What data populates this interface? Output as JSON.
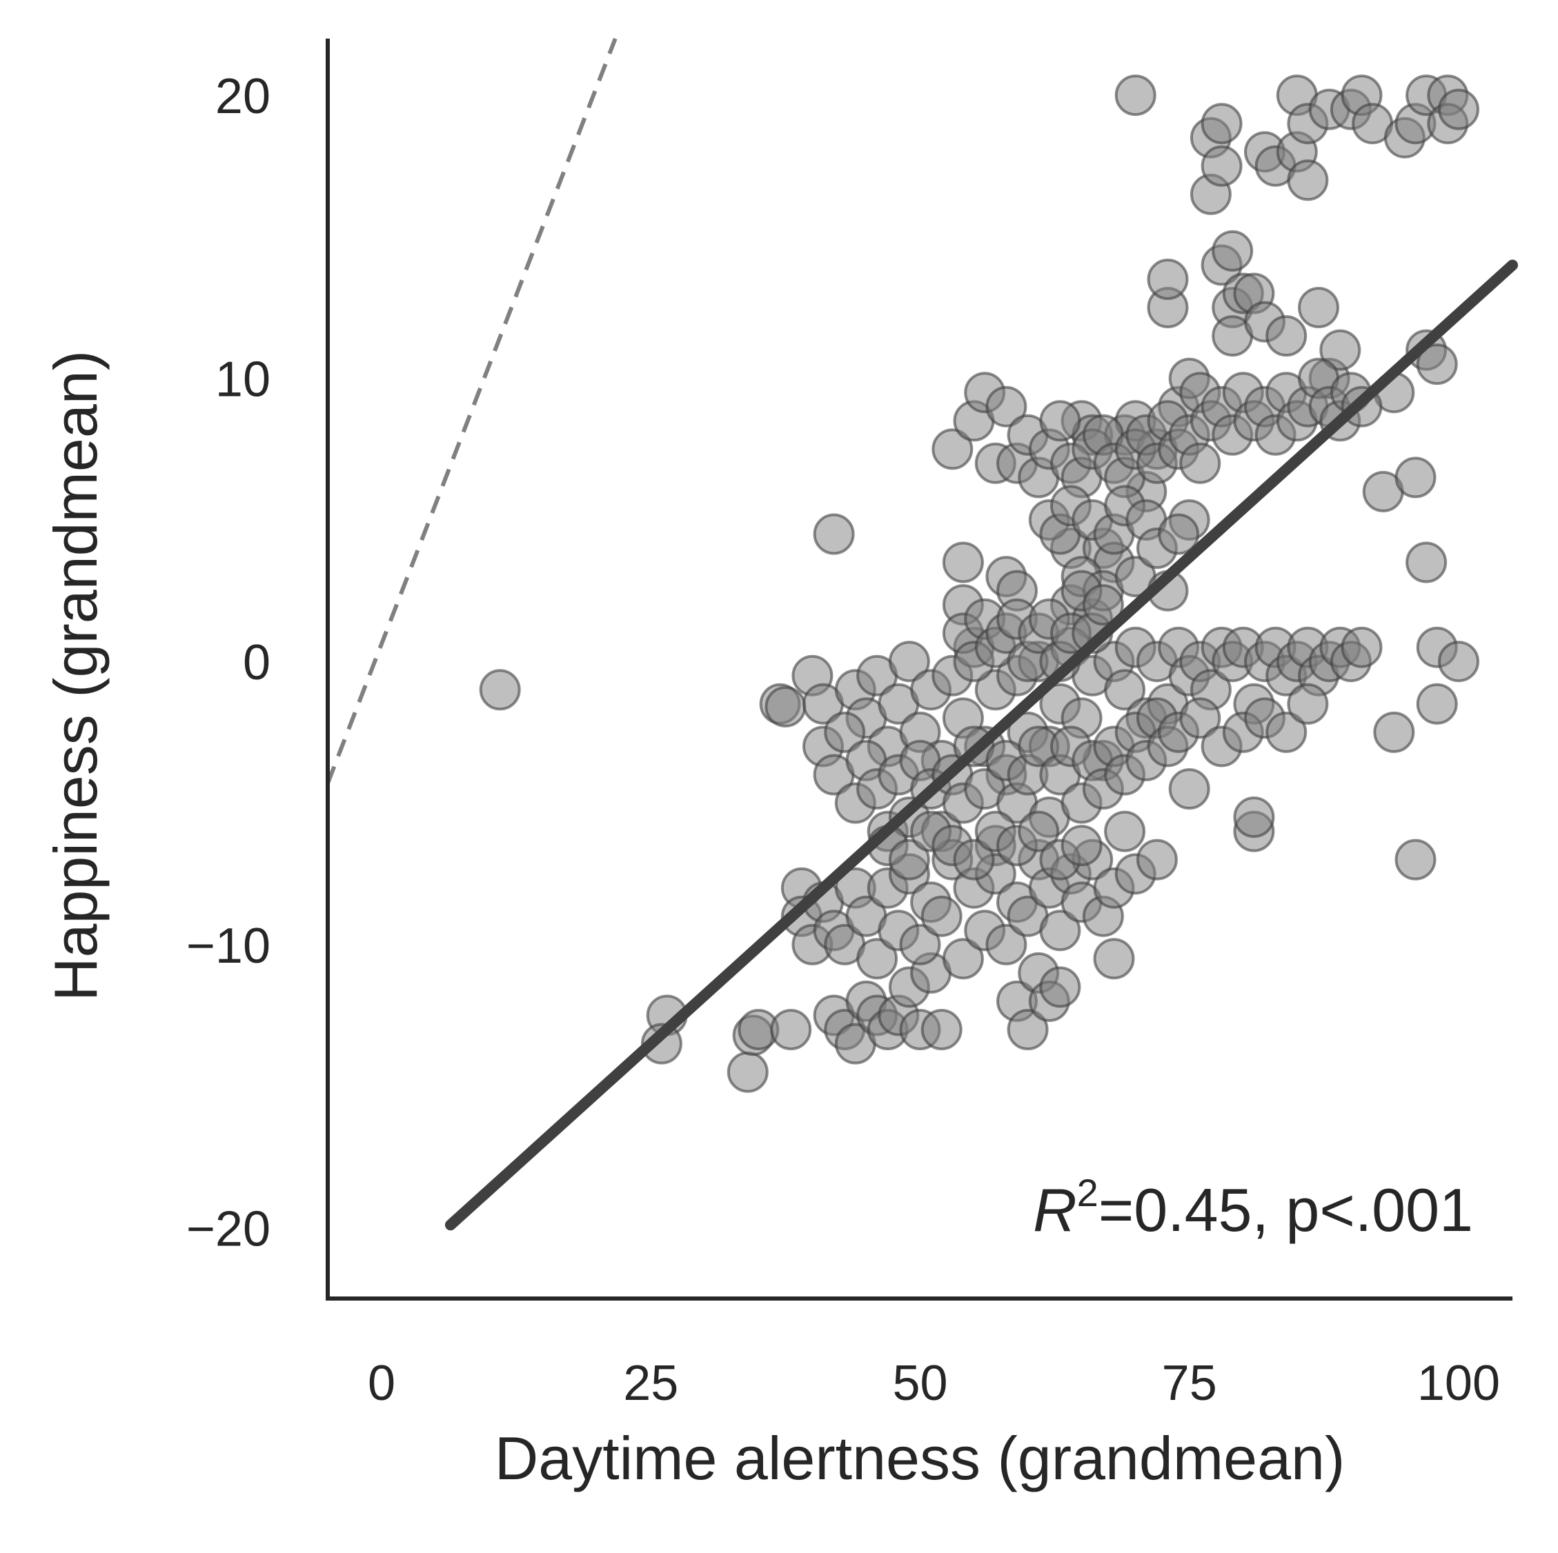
{
  "chart_data": {
    "type": "scatter",
    "xlabel": "Daytime alertness (grandmean)",
    "ylabel": "Happiness (grandmean)",
    "xlim": [
      -5,
      105
    ],
    "ylim": [
      -22.5,
      22
    ],
    "xticks": [
      0,
      25,
      50,
      75,
      100
    ],
    "yticks": [
      20,
      10,
      0,
      -10,
      -20
    ],
    "xtick_labels": [
      "0",
      "25",
      "50",
      "75",
      "100"
    ],
    "ytick_labels": [
      "20",
      "10",
      "0",
      "−10",
      "−20"
    ],
    "grid": false,
    "annotation": {
      "r_label": "R",
      "r_exponent": "2",
      "text": "=0.45, p<.001"
    },
    "fit_line": {
      "x": [
        6.4,
        105
      ],
      "y": [
        -19.9,
        14.0
      ],
      "color": "#404040"
    },
    "reference_line": {
      "x": [
        -5,
        21.7
      ],
      "y": [
        -4.3,
        22
      ],
      "color": "#808080",
      "style": "dashed"
    },
    "point_color": "#808080",
    "points": [
      [
        11,
        -1
      ],
      [
        26.5,
        -12.5
      ],
      [
        26,
        -13.5
      ],
      [
        34,
        -14.5
      ],
      [
        34.5,
        -13.2
      ],
      [
        35,
        -13
      ],
      [
        37,
        -1.5
      ],
      [
        37.5,
        -1.6
      ],
      [
        38,
        -13
      ],
      [
        39,
        -8
      ],
      [
        40,
        -0.5
      ],
      [
        41,
        -1.5
      ],
      [
        42,
        4.5
      ],
      [
        42,
        -12.5
      ],
      [
        43,
        -13
      ],
      [
        44,
        -13.5
      ],
      [
        45,
        -12
      ],
      [
        46,
        -12.5
      ],
      [
        47,
        -13
      ],
      [
        48,
        -12.5
      ],
      [
        49,
        -11.5
      ],
      [
        50,
        -13
      ],
      [
        51,
        -11
      ],
      [
        52,
        -13
      ],
      [
        53,
        7.5
      ],
      [
        54,
        3.5
      ],
      [
        54,
        2
      ],
      [
        55,
        8.5
      ],
      [
        56,
        9.5
      ],
      [
        57,
        7
      ],
      [
        58,
        9
      ],
      [
        58,
        3
      ],
      [
        59,
        2.5
      ],
      [
        59,
        -12
      ],
      [
        60,
        -13
      ],
      [
        61,
        -11
      ],
      [
        62,
        -12
      ],
      [
        63,
        -11.5
      ],
      [
        64,
        4
      ],
      [
        64,
        2
      ],
      [
        65,
        8.5
      ],
      [
        66,
        8
      ],
      [
        66,
        1.5
      ],
      [
        67,
        4
      ],
      [
        68,
        3.5
      ],
      [
        68,
        -10.5
      ],
      [
        69,
        8
      ],
      [
        70,
        8.5
      ],
      [
        70,
        20
      ],
      [
        71,
        6
      ],
      [
        72,
        7.5
      ],
      [
        73,
        12.5
      ],
      [
        73,
        13.5
      ],
      [
        74,
        9
      ],
      [
        75,
        10
      ],
      [
        75,
        5
      ],
      [
        75,
        -4.5
      ],
      [
        76,
        9.5
      ],
      [
        77,
        18.5
      ],
      [
        77,
        16.5
      ],
      [
        78,
        19
      ],
      [
        78,
        17.5
      ],
      [
        78,
        14
      ],
      [
        79,
        12.5
      ],
      [
        79,
        11.5
      ],
      [
        79,
        14.5
      ],
      [
        80,
        13
      ],
      [
        81,
        13
      ],
      [
        81,
        -6
      ],
      [
        81,
        -5.5
      ],
      [
        82,
        12
      ],
      [
        82,
        18
      ],
      [
        83,
        17.5
      ],
      [
        84,
        11.5
      ],
      [
        85,
        20
      ],
      [
        85,
        18
      ],
      [
        86,
        19
      ],
      [
        86,
        17
      ],
      [
        87,
        12.5
      ],
      [
        88,
        19.5
      ],
      [
        88,
        10
      ],
      [
        89,
        11
      ],
      [
        90,
        19.5
      ],
      [
        91,
        20
      ],
      [
        92,
        19
      ],
      [
        93,
        6
      ],
      [
        94,
        9.5
      ],
      [
        94,
        -2.5
      ],
      [
        95,
        18.5
      ],
      [
        96,
        19
      ],
      [
        96,
        6.5
      ],
      [
        96,
        -7
      ],
      [
        97,
        11
      ],
      [
        97,
        20
      ],
      [
        97,
        3.5
      ],
      [
        98,
        10.5
      ],
      [
        98,
        0.5
      ],
      [
        98,
        -1.5
      ],
      [
        99,
        20
      ],
      [
        99,
        19
      ],
      [
        100,
        19.5
      ],
      [
        100,
        0
      ],
      [
        44,
        -1
      ],
      [
        45,
        -2
      ],
      [
        46,
        -0.5
      ],
      [
        47,
        -3
      ],
      [
        48,
        -1.5
      ],
      [
        49,
        0
      ],
      [
        50,
        -2.5
      ],
      [
        51,
        -1
      ],
      [
        52,
        -3.5
      ],
      [
        53,
        -0.5
      ],
      [
        54,
        -2
      ],
      [
        55,
        0.5
      ],
      [
        56,
        -3
      ],
      [
        57,
        -1
      ],
      [
        58,
        -4
      ],
      [
        59,
        -0.5
      ],
      [
        60,
        -2.5
      ],
      [
        61,
        0
      ],
      [
        62,
        -3
      ],
      [
        63,
        -1.5
      ],
      [
        64,
        0.5
      ],
      [
        65,
        -2
      ],
      [
        66,
        -0.5
      ],
      [
        67,
        -3.5
      ],
      [
        68,
        0
      ],
      [
        69,
        -1
      ],
      [
        70,
        0.5
      ],
      [
        71,
        -2
      ],
      [
        72,
        0
      ],
      [
        73,
        -1.5
      ],
      [
        74,
        0.5
      ],
      [
        75,
        -0.5
      ],
      [
        76,
        0
      ],
      [
        77,
        -1
      ],
      [
        78,
        0.5
      ],
      [
        79,
        0
      ],
      [
        80,
        0.5
      ],
      [
        81,
        -1.5
      ],
      [
        82,
        0
      ],
      [
        83,
        0.5
      ],
      [
        84,
        -0.5
      ],
      [
        85,
        0
      ],
      [
        86,
        0.5
      ],
      [
        87,
        -0.5
      ],
      [
        88,
        0
      ],
      [
        89,
        0.5
      ],
      [
        90,
        0
      ],
      [
        91,
        0.5
      ],
      [
        41,
        -3
      ],
      [
        42,
        -4
      ],
      [
        43,
        -2.5
      ],
      [
        44,
        -5
      ],
      [
        45,
        -3.5
      ],
      [
        46,
        -4.5
      ],
      [
        47,
        -6
      ],
      [
        48,
        -4
      ],
      [
        49,
        -5.5
      ],
      [
        50,
        -3.5
      ],
      [
        51,
        -4.5
      ],
      [
        52,
        -6
      ],
      [
        53,
        -4
      ],
      [
        54,
        -5
      ],
      [
        55,
        -3
      ],
      [
        56,
        -4.5
      ],
      [
        57,
        -6.5
      ],
      [
        58,
        -3.5
      ],
      [
        59,
        -5
      ],
      [
        60,
        -4
      ],
      [
        61,
        -3
      ],
      [
        62,
        -5.5
      ],
      [
        63,
        -4
      ],
      [
        64,
        -3
      ],
      [
        65,
        -5
      ],
      [
        66,
        -3.5
      ],
      [
        67,
        -4.5
      ],
      [
        68,
        -3
      ],
      [
        69,
        -4
      ],
      [
        70,
        -2.5
      ],
      [
        71,
        -3.5
      ],
      [
        72,
        -2
      ],
      [
        73,
        -3
      ],
      [
        74,
        -2.5
      ],
      [
        76,
        -2
      ],
      [
        78,
        -3
      ],
      [
        80,
        -2.5
      ],
      [
        82,
        -2
      ],
      [
        84,
        -2.5
      ],
      [
        86,
        -1.5
      ],
      [
        39,
        -9
      ],
      [
        40,
        -10
      ],
      [
        41,
        -8.5
      ],
      [
        42,
        -9.5
      ],
      [
        43,
        -10
      ],
      [
        44,
        -8
      ],
      [
        45,
        -9
      ],
      [
        46,
        -10.5
      ],
      [
        47,
        -8
      ],
      [
        48,
        -9.5
      ],
      [
        49,
        -7.5
      ],
      [
        50,
        -10
      ],
      [
        51,
        -8.5
      ],
      [
        52,
        -9
      ],
      [
        53,
        -7
      ],
      [
        54,
        -10.5
      ],
      [
        55,
        -8
      ],
      [
        56,
        -9.5
      ],
      [
        57,
        -7.5
      ],
      [
        58,
        -10
      ],
      [
        59,
        -8.5
      ],
      [
        60,
        -9
      ],
      [
        61,
        -7
      ],
      [
        62,
        -8
      ],
      [
        63,
        -9.5
      ],
      [
        64,
        -7.5
      ],
      [
        65,
        -8.5
      ],
      [
        66,
        -7
      ],
      [
        67,
        -9
      ],
      [
        68,
        -8
      ],
      [
        69,
        -6
      ],
      [
        70,
        -7.5
      ],
      [
        72,
        -7
      ],
      [
        47,
        -6.5
      ],
      [
        49,
        -7
      ],
      [
        51,
        -6
      ],
      [
        53,
        -6.5
      ],
      [
        55,
        -7
      ],
      [
        57,
        -6
      ],
      [
        59,
        -6.5
      ],
      [
        61,
        -6
      ],
      [
        63,
        -7
      ],
      [
        65,
        -6.5
      ],
      [
        59,
        7
      ],
      [
        60,
        8
      ],
      [
        61,
        6.5
      ],
      [
        62,
        7.5
      ],
      [
        63,
        8.5
      ],
      [
        64,
        7
      ],
      [
        65,
        6.5
      ],
      [
        66,
        7.5
      ],
      [
        67,
        8
      ],
      [
        68,
        7
      ],
      [
        69,
        6.5
      ],
      [
        70,
        7.5
      ],
      [
        71,
        8
      ],
      [
        72,
        7
      ],
      [
        73,
        8.5
      ],
      [
        74,
        7.5
      ],
      [
        75,
        8
      ],
      [
        76,
        7
      ],
      [
        77,
        8.5
      ],
      [
        78,
        9
      ],
      [
        79,
        8
      ],
      [
        80,
        9.5
      ],
      [
        81,
        8.5
      ],
      [
        82,
        9
      ],
      [
        83,
        8
      ],
      [
        84,
        9.5
      ],
      [
        85,
        8.5
      ],
      [
        86,
        9
      ],
      [
        87,
        10
      ],
      [
        88,
        9
      ],
      [
        89,
        8.5
      ],
      [
        90,
        9.5
      ],
      [
        91,
        9
      ],
      [
        62,
        5
      ],
      [
        63,
        4.5
      ],
      [
        64,
        5.5
      ],
      [
        65,
        3
      ],
      [
        66,
        5
      ],
      [
        67,
        2.5
      ],
      [
        68,
        4.5
      ],
      [
        69,
        5.5
      ],
      [
        70,
        3
      ],
      [
        71,
        5
      ],
      [
        72,
        4
      ],
      [
        73,
        2.5
      ],
      [
        74,
        4.5
      ],
      [
        54,
        1
      ],
      [
        55,
        0
      ],
      [
        56,
        1.5
      ],
      [
        57,
        0.5
      ],
      [
        58,
        1
      ],
      [
        59,
        1.5
      ],
      [
        60,
        0
      ],
      [
        61,
        1
      ],
      [
        62,
        1.5
      ],
      [
        63,
        0
      ],
      [
        64,
        1
      ],
      [
        65,
        2.5
      ],
      [
        66,
        1
      ],
      [
        67,
        2
      ]
    ]
  }
}
